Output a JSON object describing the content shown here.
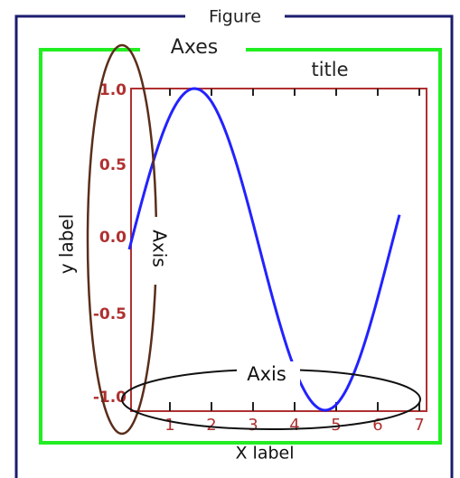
{
  "figure_label": "Figure",
  "axes_label": "Axes",
  "title": "title",
  "y_label": "y label",
  "x_label": "X label",
  "y_axis_label": "Axis",
  "x_axis_label": "Axis",
  "yticks": [
    "1.0",
    "0.5",
    "0.0",
    "-0.5",
    "-1.0"
  ],
  "xticks": [
    "1",
    "2",
    "3",
    "4",
    "5",
    "6",
    "7"
  ]
}
